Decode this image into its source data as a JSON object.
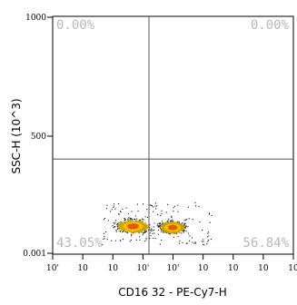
{
  "chart_data": {
    "type": "scatter",
    "xlabel": "CD16 32 - PE-Cy7-H",
    "ylabel": "SSC-H (10^3)",
    "x_scale": "log",
    "xlim": [
      1,
      100000
    ],
    "ylim": [
      0,
      1000
    ],
    "x_tick_labels": [
      "10'",
      "10",
      "10",
      "10'",
      "10'",
      "10",
      "10",
      "10",
      "10"
    ],
    "y_tick_labels": [
      "1000",
      "500",
      "0.001"
    ],
    "grid": false,
    "gates": {
      "x": 100,
      "y": 400
    },
    "quadrants": [
      {
        "position": "upper-left",
        "label": "0.00%"
      },
      {
        "position": "upper-right",
        "label": "0.00%"
      },
      {
        "position": "lower-left",
        "label": "43.05%"
      },
      {
        "position": "lower-right",
        "label": "56.84%"
      }
    ],
    "populations": [
      {
        "name_shown": "",
        "center_x": 45,
        "center_y": 120,
        "spread_log_x": 0.36,
        "spread_y": 30,
        "share": 0.4305
      },
      {
        "name_shown": "",
        "center_x": 300,
        "center_y": 115,
        "spread_log_x": 0.28,
        "spread_y": 26,
        "share": 0.5684
      }
    ],
    "colors": {
      "sparse": "#111111",
      "medium": "#c8a000",
      "dense": "#f2c200",
      "core": "#e85a00",
      "frame": "#000000",
      "gate_line": "#555555",
      "quad_label": "#b7b7b7"
    }
  }
}
